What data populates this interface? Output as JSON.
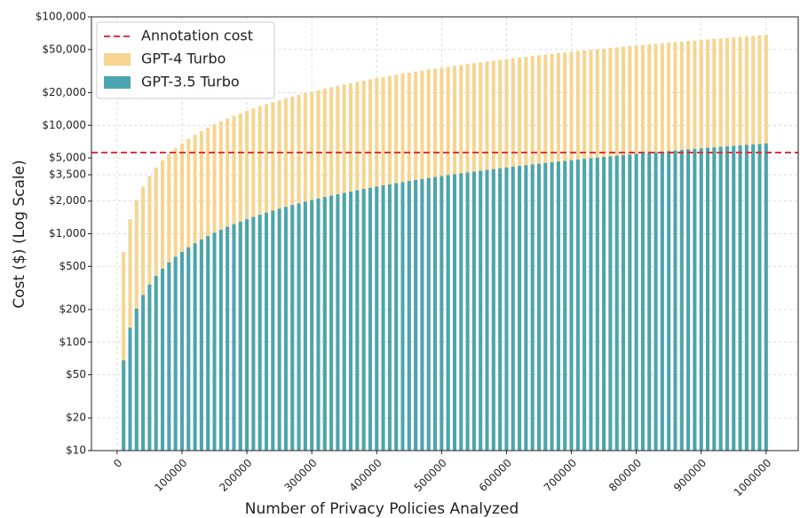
{
  "chart_data": {
    "type": "bar",
    "log_scale_y": true,
    "grid": true,
    "legend": "upper left",
    "xlabel": "Number of Privacy Policies Analyzed",
    "ylabel": "Cost ($) (Log Scale)",
    "x": [
      10000,
      20000,
      30000,
      40000,
      50000,
      60000,
      70000,
      80000,
      90000,
      100000,
      110000,
      120000,
      130000,
      140000,
      150000,
      160000,
      170000,
      180000,
      190000,
      200000,
      210000,
      220000,
      230000,
      240000,
      250000,
      260000,
      270000,
      280000,
      290000,
      300000,
      310000,
      320000,
      330000,
      340000,
      350000,
      360000,
      370000,
      380000,
      390000,
      400000,
      410000,
      420000,
      430000,
      440000,
      450000,
      460000,
      470000,
      480000,
      490000,
      500000,
      510000,
      520000,
      530000,
      540000,
      550000,
      560000,
      570000,
      580000,
      590000,
      600000,
      610000,
      620000,
      630000,
      640000,
      650000,
      660000,
      670000,
      680000,
      690000,
      700000,
      710000,
      720000,
      730000,
      740000,
      750000,
      760000,
      770000,
      780000,
      790000,
      800000,
      810000,
      820000,
      830000,
      840000,
      850000,
      860000,
      870000,
      880000,
      890000,
      900000,
      910000,
      920000,
      930000,
      940000,
      950000,
      960000,
      970000,
      980000,
      990000,
      1000000
    ],
    "series": [
      {
        "name": "GPT-4 Turbo",
        "color": "#f5d58f",
        "values": [
          680,
          1360,
          2040,
          2720,
          3400,
          4080,
          4760,
          5440,
          6120,
          6800,
          7480,
          8160,
          8840,
          9520,
          10200,
          10880,
          11560,
          12240,
          12920,
          13600,
          14280,
          14960,
          15640,
          16320,
          17000,
          17680,
          18360,
          19040,
          19720,
          20400,
          21080,
          21760,
          22440,
          23120,
          23800,
          24480,
          25160,
          25840,
          26520,
          27200,
          27880,
          28560,
          29240,
          29920,
          30600,
          31280,
          31960,
          32640,
          33320,
          34000,
          34680,
          35360,
          36040,
          36720,
          37400,
          38080,
          38760,
          39440,
          40120,
          40800,
          41480,
          42160,
          42840,
          43520,
          44200,
          44880,
          45560,
          46240,
          46920,
          47600,
          48280,
          48960,
          49640,
          50320,
          51000,
          51680,
          52360,
          53040,
          53720,
          54400,
          55080,
          55760,
          56440,
          57120,
          57800,
          58480,
          59160,
          59840,
          60520,
          61200,
          61880,
          62560,
          63240,
          63920,
          64600,
          65280,
          65960,
          66640,
          67320,
          68000
        ]
      },
      {
        "name": "GPT-3.5 Turbo",
        "color": "#4aa5ae",
        "values": [
          68,
          136,
          204,
          272,
          340,
          408,
          476,
          544,
          612,
          680,
          748,
          816,
          884,
          952,
          1020,
          1088,
          1156,
          1224,
          1292,
          1360,
          1428,
          1496,
          1564,
          1632,
          1700,
          1768,
          1836,
          1904,
          1972,
          2040,
          2108,
          2176,
          2244,
          2312,
          2380,
          2448,
          2516,
          2584,
          2652,
          2720,
          2788,
          2856,
          2924,
          2992,
          3060,
          3128,
          3196,
          3264,
          3332,
          3400,
          3468,
          3536,
          3604,
          3672,
          3740,
          3808,
          3876,
          3944,
          4012,
          4080,
          4148,
          4216,
          4284,
          4352,
          4420,
          4488,
          4556,
          4624,
          4692,
          4760,
          4828,
          4896,
          4964,
          5032,
          5100,
          5168,
          5236,
          5304,
          5372,
          5440,
          5508,
          5576,
          5644,
          5712,
          5780,
          5848,
          5916,
          5984,
          6052,
          6120,
          6188,
          6256,
          6324,
          6392,
          6460,
          6528,
          6596,
          6664,
          6732,
          6800
        ]
      }
    ],
    "annotation": {
      "name": "Annotation cost",
      "value": 5600,
      "color": "#d9363e"
    },
    "xlim": [
      -39500,
      1049500
    ],
    "xticks": [
      0,
      100000,
      200000,
      300000,
      400000,
      500000,
      600000,
      700000,
      800000,
      900000,
      1000000
    ],
    "ylim": [
      10,
      100000
    ],
    "yticks": [
      {
        "value": 10,
        "label": "$10"
      },
      {
        "value": 20,
        "label": "$20"
      },
      {
        "value": 50,
        "label": "$50"
      },
      {
        "value": 100,
        "label": "$100"
      },
      {
        "value": 200,
        "label": "$200"
      },
      {
        "value": 500,
        "label": "$500"
      },
      {
        "value": 1000,
        "label": "$1,000"
      },
      {
        "value": 2000,
        "label": "$2,000"
      },
      {
        "value": 3500,
        "label": "$3,500"
      },
      {
        "value": 5000,
        "label": "$5,000"
      },
      {
        "value": 10000,
        "label": "$10,000"
      },
      {
        "value": 20000,
        "label": "$20,000"
      },
      {
        "value": 50000,
        "label": "$50,000"
      },
      {
        "value": 100000,
        "label": "$100,000"
      }
    ]
  }
}
